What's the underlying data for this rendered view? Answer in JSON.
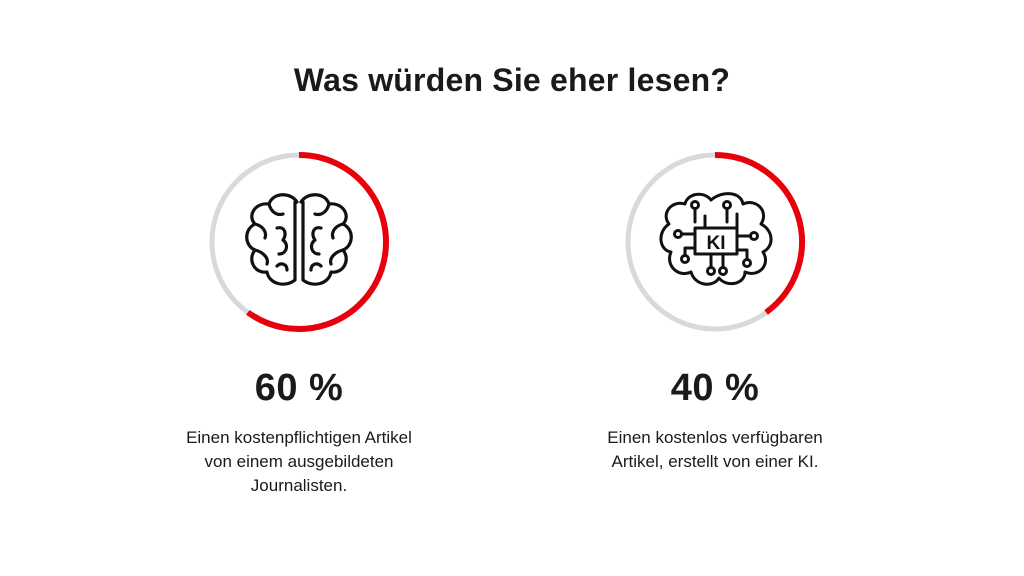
{
  "title": "Was würden Sie eher lesen?",
  "colors": {
    "accent": "#e8000d",
    "track": "#d9d9d9",
    "text": "#1a1a1a"
  },
  "chart_data": {
    "type": "pie",
    "title": "Was würden Sie eher lesen?",
    "unit": "%",
    "items": [
      {
        "icon": "brain-icon",
        "percent_label": "60 %",
        "value": 60,
        "description_lines": [
          "Einen kostenpflichtigen Artikel",
          "von einem ausgebildeten",
          "Journalisten."
        ]
      },
      {
        "icon": "ai-brain-circuit-icon",
        "icon_text": "KI",
        "percent_label": "40 %",
        "value": 40,
        "description_lines": [
          "Einen kostenlos verfügbaren",
          "Artikel, erstellt von einer KI."
        ]
      }
    ]
  }
}
